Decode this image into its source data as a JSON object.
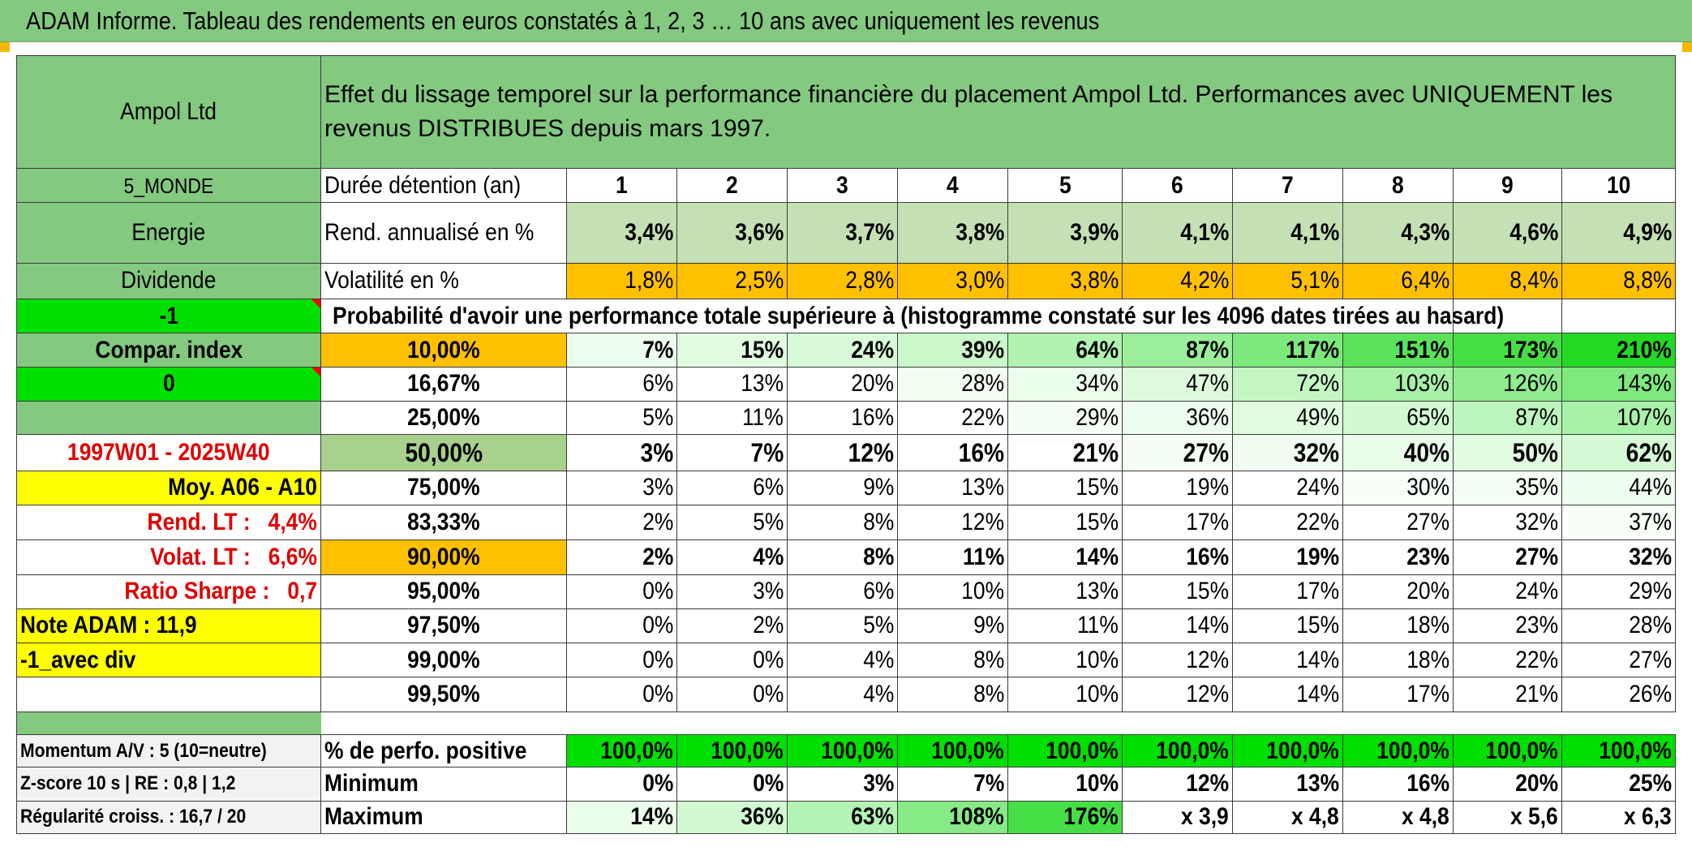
{
  "header": {
    "banner": "ADAM Informe. Tableau des rendements en euros constatés à 1, 2, 3 … 10 ans avec uniquement les revenus"
  },
  "side": {
    "name": "Ampol Ltd",
    "region": "5_MONDE",
    "sector": "Energie",
    "strategy": "Dividende",
    "code1": "-1",
    "compar": "Compar. index",
    "code2": "0",
    "period": "1997W01 - 2025W40",
    "moy": "Moy. A06 - A10",
    "rend_label": "Rend. LT :",
    "rend_value": "4,4%",
    "volat_label": "Volat. LT :",
    "volat_value": "6,6%",
    "sharpe_label": "Ratio Sharpe :",
    "sharpe_value": "0,7",
    "note": "Note ADAM : 11,9",
    "avec_div": "-1_avec div",
    "momentum": "Momentum A/V : 5 (10=neutre)",
    "zscore": "Z-score 10 s | RE : 0,8 | 1,2",
    "regularite": "Régularité croiss. : 16,7 / 20"
  },
  "intro": {
    "title": "Effet du lissage temporel sur la performance financière du placement Ampol Ltd. Performances avec UNIQUEMENT les revenus DISTRIBUES depuis mars 1997."
  },
  "main": {
    "duree_label": "Durée détention (an)",
    "years": [
      "1",
      "2",
      "3",
      "4",
      "5",
      "6",
      "7",
      "8",
      "9",
      "10"
    ],
    "rend_label": "Rend. annualisé en %",
    "rend": [
      "3,4%",
      "3,6%",
      "3,7%",
      "3,8%",
      "3,9%",
      "4,1%",
      "4,1%",
      "4,3%",
      "4,6%",
      "4,9%"
    ],
    "vol_label": "Volatilité en %",
    "vol": [
      "1,8%",
      "2,5%",
      "2,8%",
      "3,0%",
      "3,8%",
      "4,2%",
      "5,1%",
      "6,4%",
      "8,4%",
      "8,8%"
    ],
    "prob_label": "Probabilité d'avoir une performance totale supérieure à (histogramme constaté sur les 4096 dates tirées au hasard)"
  },
  "percentiles": [
    {
      "p": "10,00%",
      "v": [
        "7%",
        "15%",
        "24%",
        "39%",
        "64%",
        "87%",
        "117%",
        "151%",
        "173%",
        "210%"
      ]
    },
    {
      "p": "16,67%",
      "v": [
        "6%",
        "13%",
        "20%",
        "28%",
        "34%",
        "47%",
        "72%",
        "103%",
        "126%",
        "143%"
      ]
    },
    {
      "p": "25,00%",
      "v": [
        "5%",
        "11%",
        "16%",
        "22%",
        "29%",
        "36%",
        "49%",
        "65%",
        "87%",
        "107%"
      ]
    },
    {
      "p": "50,00%",
      "v": [
        "3%",
        "7%",
        "12%",
        "16%",
        "21%",
        "27%",
        "32%",
        "40%",
        "50%",
        "62%"
      ]
    },
    {
      "p": "75,00%",
      "v": [
        "3%",
        "6%",
        "9%",
        "13%",
        "15%",
        "19%",
        "24%",
        "30%",
        "35%",
        "44%"
      ]
    },
    {
      "p": "83,33%",
      "v": [
        "2%",
        "5%",
        "8%",
        "12%",
        "15%",
        "17%",
        "22%",
        "27%",
        "32%",
        "37%"
      ]
    },
    {
      "p": "90,00%",
      "v": [
        "2%",
        "4%",
        "8%",
        "11%",
        "14%",
        "16%",
        "19%",
        "23%",
        "27%",
        "32%"
      ]
    },
    {
      "p": "95,00%",
      "v": [
        "0%",
        "3%",
        "6%",
        "10%",
        "13%",
        "15%",
        "17%",
        "20%",
        "24%",
        "29%"
      ]
    },
    {
      "p": "97,50%",
      "v": [
        "0%",
        "2%",
        "5%",
        "9%",
        "11%",
        "14%",
        "15%",
        "18%",
        "23%",
        "28%"
      ]
    },
    {
      "p": "99,00%",
      "v": [
        "0%",
        "0%",
        "4%",
        "8%",
        "10%",
        "12%",
        "14%",
        "18%",
        "22%",
        "27%"
      ]
    },
    {
      "p": "99,50%",
      "v": [
        "0%",
        "0%",
        "4%",
        "8%",
        "10%",
        "12%",
        "14%",
        "17%",
        "21%",
        "26%"
      ]
    }
  ],
  "summary": {
    "pos_label": "% de perfo. positive",
    "pos": [
      "100,0%",
      "100,0%",
      "100,0%",
      "100,0%",
      "100,0%",
      "100,0%",
      "100,0%",
      "100,0%",
      "100,0%",
      "100,0%"
    ],
    "min_label": "Minimum",
    "min": [
      "0%",
      "0%",
      "3%",
      "7%",
      "10%",
      "12%",
      "13%",
      "16%",
      "20%",
      "25%"
    ],
    "max_label": "Maximum",
    "max": [
      "14%",
      "36%",
      "63%",
      "108%",
      "176%",
      "x 3,9",
      "x 4,8",
      "x 4,8",
      "x 5,6",
      "x 6,3"
    ]
  },
  "colors": {
    "header_green": "#83c97f",
    "pale_green": "#c5e0b4",
    "orange": "#ffc000",
    "yellow": "#ffff00",
    "lime": "#00e000",
    "red_text": "#e00000"
  }
}
